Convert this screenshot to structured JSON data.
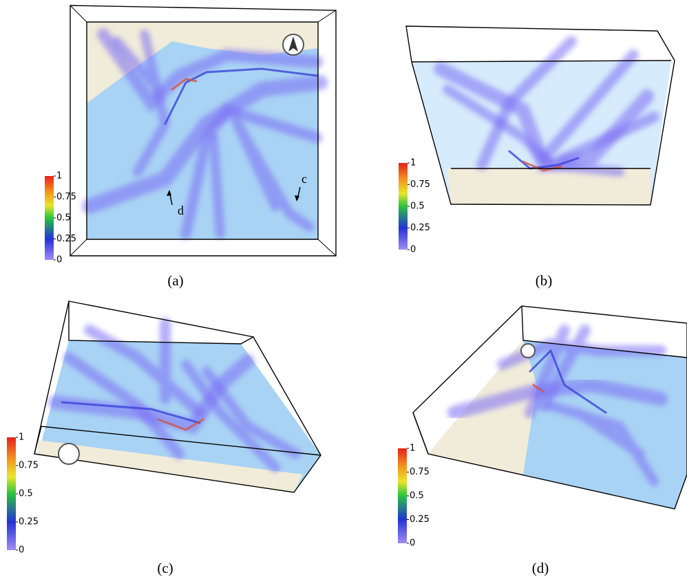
{
  "panels": [
    {
      "label": "(a)",
      "colorbar_ticks": [
        1,
        0.75,
        0.5,
        0.25,
        0
      ],
      "annotations": [
        "d",
        "c"
      ]
    },
    {
      "label": "(b)",
      "colorbar_ticks": [
        1,
        0.75,
        0.5,
        0.25,
        0
      ]
    },
    {
      "label": "(c)",
      "colorbar_ticks": [
        1,
        0.75,
        0.5,
        0.25,
        0
      ]
    },
    {
      "label": "(d)",
      "colorbar_ticks": [
        1,
        0.75,
        0.5,
        0.25,
        0
      ]
    }
  ]
}
